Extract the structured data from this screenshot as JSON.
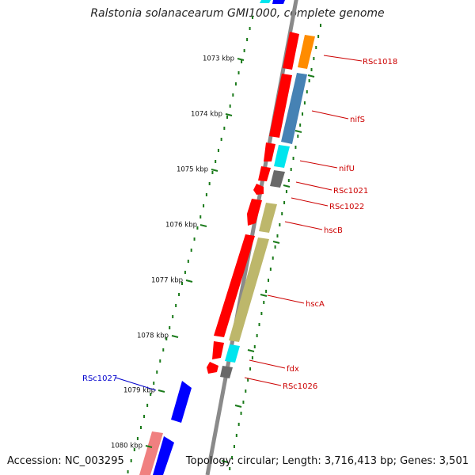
{
  "title": "Ralstonia solanacearum GMI1000, complete genome",
  "footer": {
    "accession": "Accession: NC_003295",
    "summary": "Topology: circular; Length: 3,716,413 bp; Genes: 3,501"
  },
  "colors": {
    "backbone": "#8a8a8a",
    "tick": "#1a7a1a",
    "forward_cds": "#ff0000",
    "reverse_cds": "#0000ff",
    "label_forward": "#cc0000",
    "label_reverse": "#0000cc"
  },
  "scale_labels": [
    "1073 kbp",
    "1074 kbp",
    "1075 kbp",
    "1076 kbp",
    "1077 kbp",
    "1078 kbp",
    "1079 kbp",
    "1080 kbp"
  ],
  "gene_labels": [
    {
      "key": "rsc1018",
      "text": "RSc1018",
      "strand": "forward"
    },
    {
      "key": "nifs",
      "text": "nifS",
      "strand": "forward"
    },
    {
      "key": "nifu",
      "text": "nifU",
      "strand": "forward"
    },
    {
      "key": "rsc1021",
      "text": "RSc1021",
      "strand": "forward"
    },
    {
      "key": "rsc1022",
      "text": "RSc1022",
      "strand": "forward"
    },
    {
      "key": "hscb",
      "text": "hscB",
      "strand": "forward"
    },
    {
      "key": "hsca",
      "text": "hscA",
      "strand": "forward"
    },
    {
      "key": "fdx",
      "text": "fdx",
      "strand": "forward"
    },
    {
      "key": "rsc1026",
      "text": "RSc1026",
      "strand": "forward"
    },
    {
      "key": "rsc1027",
      "text": "RSc1027",
      "strand": "reverse"
    }
  ],
  "feature_colors": {
    "rsc1018": "#ff8c00",
    "nifs": "#4682b4",
    "nifu": "#00e5ee",
    "rsc1021": "#696969",
    "rsc1022": "#ff0000",
    "hscb": "#bdb76b",
    "hsca": "#bdb76b",
    "fdx": "#00e5ee",
    "rsc1026": "#696969",
    "rsc1027": "#0000ff",
    "pink": "#f08080"
  }
}
